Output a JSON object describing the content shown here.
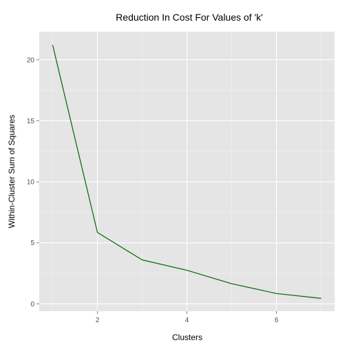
{
  "chart_data": {
    "type": "line",
    "title": "Reduction In Cost For Values of 'k'",
    "xlabel": "Clusters",
    "ylabel": "Within-Cluster Sum of Squares",
    "x": [
      1,
      2,
      3,
      4,
      5,
      6,
      7
    ],
    "series": [
      {
        "values": [
          21.2,
          5.85,
          3.6,
          2.75,
          1.65,
          0.85,
          0.45
        ]
      }
    ],
    "xlim": [
      0.7,
      7.3
    ],
    "ylim": [
      -0.6,
      22.3
    ],
    "xticks": [
      2,
      4,
      6
    ],
    "yticks": [
      0,
      5,
      10,
      15,
      20
    ],
    "xtick_labels": [
      "2",
      "4",
      "6"
    ],
    "ytick_labels": [
      "0",
      "5",
      "10",
      "15",
      "20"
    ],
    "grid": true,
    "legend": "none",
    "colors": {
      "panel_background": "#e5e5e5",
      "grid_major": "#ffffff",
      "grid_minor": "#f2f2f2",
      "line": "#006400",
      "tick_mark": "#7f7f7f"
    }
  }
}
